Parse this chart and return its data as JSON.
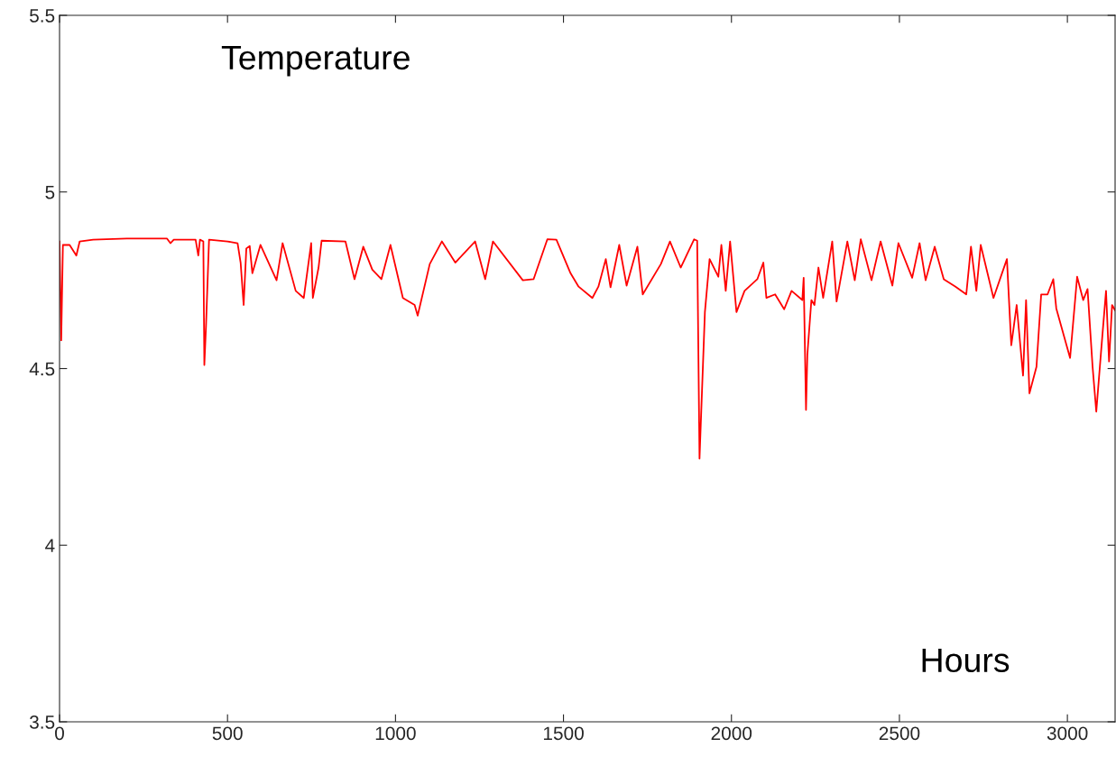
{
  "chart_data": {
    "type": "line",
    "xlabel": "Hours",
    "ylabel": "Temperature",
    "xlim": [
      0,
      3142
    ],
    "ylim": [
      3.5,
      5.5
    ],
    "xticks": [
      0,
      500,
      1000,
      1500,
      2000,
      2500,
      3000
    ],
    "yticks": [
      3.5,
      4,
      4.5,
      5,
      5.5
    ],
    "grid": false,
    "marker": "none",
    "line_style": "solid",
    "series": [
      {
        "color": "#ff0000",
        "x": [
          0,
          5,
          10,
          30,
          50,
          60,
          100,
          200,
          320,
          330,
          340,
          405,
          413,
          418,
          428,
          431,
          436,
          445,
          500,
          530,
          539,
          548,
          556,
          566,
          574,
          598,
          646,
          664,
          703,
          727,
          749,
          754,
          771,
          780,
          851,
          878,
          904,
          931,
          958,
          985,
          1022,
          1057,
          1066,
          1102,
          1138,
          1178,
          1237,
          1267,
          1290,
          1379,
          1411,
          1452,
          1479,
          1521,
          1545,
          1586,
          1604,
          1626,
          1640,
          1666,
          1688,
          1720,
          1736,
          1790,
          1817,
          1849,
          1889,
          1898,
          1905,
          1921,
          1935,
          1961,
          1970,
          1983,
          1996,
          2015,
          2039,
          2077,
          2095,
          2104,
          2130,
          2157,
          2179,
          2211,
          2215,
          2222,
          2226,
          2238,
          2247,
          2259,
          2273,
          2300,
          2313,
          2345,
          2367,
          2385,
          2417,
          2444,
          2479,
          2497,
          2538,
          2560,
          2578,
          2605,
          2632,
          2667,
          2699,
          2713,
          2729,
          2742,
          2780,
          2820,
          2833,
          2849,
          2868,
          2877,
          2887,
          2908,
          2922,
          2941,
          2958,
          2967,
          3008,
          3029,
          3047,
          3060,
          3075,
          3086,
          3100,
          3115,
          3124,
          3133,
          3142
        ],
        "values": [
          4.86,
          4.58,
          4.85,
          4.85,
          4.82,
          4.86,
          4.865,
          4.868,
          4.868,
          4.855,
          4.865,
          4.865,
          4.82,
          4.865,
          4.86,
          4.51,
          4.62,
          4.865,
          4.86,
          4.855,
          4.8,
          4.68,
          4.84,
          4.847,
          4.77,
          4.85,
          4.75,
          4.855,
          4.72,
          4.7,
          4.855,
          4.7,
          4.786,
          4.862,
          4.86,
          4.753,
          4.845,
          4.78,
          4.753,
          4.85,
          4.7,
          4.68,
          4.65,
          4.796,
          4.86,
          4.8,
          4.86,
          4.753,
          4.86,
          4.75,
          4.753,
          4.866,
          4.865,
          4.77,
          4.732,
          4.7,
          4.732,
          4.81,
          4.73,
          4.85,
          4.735,
          4.845,
          4.71,
          4.796,
          4.86,
          4.786,
          4.866,
          4.862,
          4.245,
          4.66,
          4.81,
          4.76,
          4.85,
          4.72,
          4.86,
          4.66,
          4.72,
          4.753,
          4.8,
          4.7,
          4.71,
          4.668,
          4.72,
          4.694,
          4.757,
          4.383,
          4.54,
          4.694,
          4.68,
          4.786,
          4.7,
          4.86,
          4.69,
          4.86,
          4.75,
          4.866,
          4.75,
          4.86,
          4.735,
          4.855,
          4.757,
          4.855,
          4.75,
          4.845,
          4.753,
          4.732,
          4.71,
          4.845,
          4.72,
          4.85,
          4.7,
          4.81,
          4.566,
          4.68,
          4.48,
          4.694,
          4.43,
          4.505,
          4.71,
          4.71,
          4.753,
          4.67,
          4.53,
          4.76,
          4.694,
          4.725,
          4.505,
          4.378,
          4.545,
          4.72,
          4.52,
          4.68,
          4.665
        ]
      }
    ]
  }
}
